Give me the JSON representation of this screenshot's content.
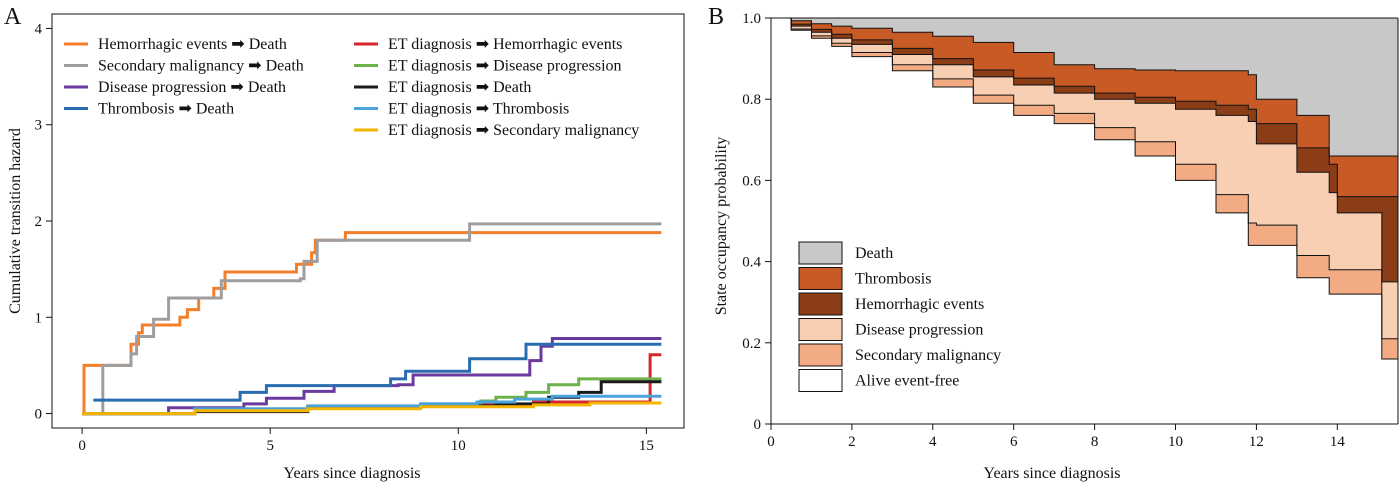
{
  "chart_data": [
    {
      "type": "line",
      "panel_label": "A",
      "xlabel": "Years since diagnosis",
      "ylabel": "Cumulative transition hazard",
      "xlim": [
        -0.8,
        16
      ],
      "ylim": [
        -0.15,
        4.15
      ],
      "xticks": [
        0,
        5,
        10,
        15
      ],
      "yticks": [
        0,
        1,
        2,
        3,
        4
      ],
      "grid": false,
      "legend_position": "top",
      "arrow_glyph": "➡",
      "series": [
        {
          "from": "Hemorrhagic events",
          "to": "Death",
          "color": "#f47f2a",
          "steps": [
            [
              0,
              0
            ],
            [
              0.05,
              0.5
            ],
            [
              0.55,
              0.5
            ],
            [
              1.3,
              0.72
            ],
            [
              1.5,
              0.84
            ],
            [
              1.6,
              0.92
            ],
            [
              2.3,
              0.92
            ],
            [
              2.6,
              1.0
            ],
            [
              2.8,
              1.08
            ],
            [
              3.1,
              1.2
            ],
            [
              3.5,
              1.3
            ],
            [
              3.8,
              1.47
            ],
            [
              5.5,
              1.47
            ],
            [
              5.7,
              1.55
            ],
            [
              6.1,
              1.67
            ],
            [
              6.2,
              1.8
            ],
            [
              7.0,
              1.88
            ],
            [
              15.4,
              1.88
            ]
          ]
        },
        {
          "from": "Secondary malignancy",
          "to": "Death",
          "color": "#9e9e9e",
          "steps": [
            [
              0.2,
              0
            ],
            [
              0.55,
              0.5
            ],
            [
              1.1,
              0.5
            ],
            [
              1.3,
              0.62
            ],
            [
              1.45,
              0.8
            ],
            [
              1.9,
              0.98
            ],
            [
              2.3,
              1.2
            ],
            [
              3.4,
              1.2
            ],
            [
              3.7,
              1.38
            ],
            [
              5.8,
              1.4
            ],
            [
              5.9,
              1.58
            ],
            [
              6.25,
              1.8
            ],
            [
              10.3,
              1.8
            ],
            [
              10.3,
              1.97
            ],
            [
              15.4,
              1.97
            ]
          ]
        },
        {
          "from": "Disease progression",
          "to": "Death",
          "color": "#6b3aa0",
          "steps": [
            [
              0,
              0
            ],
            [
              2.3,
              0.06
            ],
            [
              4.3,
              0.1
            ],
            [
              4.9,
              0.16
            ],
            [
              5.9,
              0.23
            ],
            [
              6.7,
              0.29
            ],
            [
              8.4,
              0.3
            ],
            [
              8.8,
              0.4
            ],
            [
              11.7,
              0.4
            ],
            [
              11.9,
              0.55
            ],
            [
              12.2,
              0.7
            ],
            [
              12.5,
              0.78
            ],
            [
              15.4,
              0.78
            ]
          ]
        },
        {
          "from": "Thrombosis",
          "to": "Death",
          "color": "#2a6cb0",
          "steps": [
            [
              0.3,
              0.14
            ],
            [
              4.0,
              0.14
            ],
            [
              4.2,
              0.22
            ],
            [
              4.9,
              0.29
            ],
            [
              7.8,
              0.29
            ],
            [
              8.2,
              0.36
            ],
            [
              8.6,
              0.44
            ],
            [
              10.2,
              0.44
            ],
            [
              10.3,
              0.57
            ],
            [
              11.6,
              0.57
            ],
            [
              11.8,
              0.72
            ],
            [
              15.4,
              0.72
            ]
          ]
        },
        {
          "from": "ET diagnosis",
          "to": "Hemorrhagic events",
          "color": "#d7262b",
          "steps": [
            [
              0,
              0
            ],
            [
              3.0,
              0.04
            ],
            [
              6.0,
              0.07
            ],
            [
              9.0,
              0.09
            ],
            [
              12.0,
              0.12
            ],
            [
              15.1,
              0.12
            ],
            [
              15.1,
              0.61
            ],
            [
              15.4,
              0.61
            ]
          ]
        },
        {
          "from": "ET diagnosis",
          "to": "Disease progression",
          "color": "#6db24a",
          "steps": [
            [
              0,
              0
            ],
            [
              3.0,
              0.04
            ],
            [
              6.0,
              0.07
            ],
            [
              9.0,
              0.1
            ],
            [
              10.6,
              0.13
            ],
            [
              11.0,
              0.17
            ],
            [
              11.8,
              0.22
            ],
            [
              12.4,
              0.3
            ],
            [
              13.2,
              0.36
            ],
            [
              15.4,
              0.36
            ]
          ]
        },
        {
          "from": "ET diagnosis",
          "to": "Death",
          "color": "#1a1a1a",
          "steps": [
            [
              0,
              0
            ],
            [
              3.0,
              0.02
            ],
            [
              6.0,
              0.06
            ],
            [
              9.0,
              0.08
            ],
            [
              11.0,
              0.1
            ],
            [
              12.4,
              0.17
            ],
            [
              13.2,
              0.22
            ],
            [
              13.8,
              0.33
            ],
            [
              15.4,
              0.33
            ]
          ]
        },
        {
          "from": "ET diagnosis",
          "to": "Thrombosis",
          "color": "#4aa3db",
          "steps": [
            [
              0,
              0
            ],
            [
              3.0,
              0.05
            ],
            [
              6.0,
              0.08
            ],
            [
              9.0,
              0.1
            ],
            [
              10.5,
              0.12
            ],
            [
              11.5,
              0.15
            ],
            [
              12.5,
              0.18
            ],
            [
              15.4,
              0.18
            ]
          ]
        },
        {
          "from": "ET diagnosis",
          "to": "Secondary malignancy",
          "color": "#f5b400",
          "steps": [
            [
              0,
              0
            ],
            [
              3.0,
              0.03
            ],
            [
              6.0,
              0.05
            ],
            [
              9.0,
              0.07
            ],
            [
              12.0,
              0.09
            ],
            [
              13.5,
              0.11
            ],
            [
              15.4,
              0.11
            ]
          ]
        }
      ]
    },
    {
      "type": "area",
      "panel_label": "B",
      "xlabel": "Years since diagnosis",
      "ylabel": "State occupancy probability",
      "xlim": [
        0,
        15.5
      ],
      "ylim": [
        0,
        1.0
      ],
      "xticks": [
        0,
        2,
        4,
        6,
        8,
        10,
        12,
        14
      ],
      "yticks": [
        0,
        0.2,
        0.4,
        0.6,
        0.8,
        1.0
      ],
      "ytick_labels": [
        "0",
        "0.2",
        "0.4",
        "0.6",
        "0.8",
        "1.0"
      ],
      "grid": false,
      "legend_position": "bottom-left",
      "x": [
        0,
        0.5,
        1,
        1.5,
        2,
        3,
        4,
        5,
        6,
        7,
        8,
        9,
        10,
        11,
        11.8,
        12,
        13,
        13.8,
        14,
        15.1,
        15.5
      ],
      "layers": [
        {
          "name": "Alive event-free",
          "color": "#ffffff",
          "upper": [
            1.0,
            0.97,
            0.95,
            0.93,
            0.905,
            0.87,
            0.83,
            0.79,
            0.76,
            0.74,
            0.7,
            0.66,
            0.6,
            0.52,
            0.44,
            0.44,
            0.36,
            0.32,
            0.32,
            0.16,
            0.16
          ]
        },
        {
          "name": "Secondary malignancy",
          "color": "#f2ab82",
          "upper": [
            1.0,
            0.973,
            0.956,
            0.938,
            0.915,
            0.885,
            0.85,
            0.81,
            0.785,
            0.765,
            0.73,
            0.695,
            0.64,
            0.565,
            0.495,
            0.49,
            0.415,
            0.38,
            0.38,
            0.21,
            0.21
          ]
        },
        {
          "name": "Disease progression",
          "color": "#f8cfb3",
          "upper": [
            1.0,
            0.98,
            0.965,
            0.95,
            0.935,
            0.91,
            0.885,
            0.855,
            0.835,
            0.815,
            0.8,
            0.79,
            0.775,
            0.76,
            0.745,
            0.69,
            0.62,
            0.57,
            0.52,
            0.35,
            0.35
          ]
        },
        {
          "name": "Hemorrhagic events",
          "color": "#8a3d17",
          "upper": [
            1.0,
            0.985,
            0.972,
            0.96,
            0.946,
            0.925,
            0.9,
            0.872,
            0.852,
            0.832,
            0.815,
            0.805,
            0.795,
            0.785,
            0.775,
            0.74,
            0.68,
            0.64,
            0.56,
            0.56,
            0.56
          ]
        },
        {
          "name": "Thrombosis",
          "color": "#c85a25",
          "upper": [
            1.0,
            0.993,
            0.986,
            0.98,
            0.975,
            0.965,
            0.955,
            0.94,
            0.915,
            0.885,
            0.875,
            0.872,
            0.87,
            0.87,
            0.86,
            0.8,
            0.76,
            0.66,
            0.66,
            0.66,
            0.66
          ]
        },
        {
          "name": "Death",
          "color": "#c8c8c8",
          "upper": [
            1.0,
            1.0,
            1.0,
            1.0,
            1.0,
            1.0,
            1.0,
            1.0,
            1.0,
            1.0,
            1.0,
            1.0,
            1.0,
            1.0,
            1.0,
            1.0,
            1.0,
            1.0,
            1.0,
            1.0,
            1.0
          ]
        }
      ],
      "legend_order": [
        "Death",
        "Thrombosis",
        "Hemorrhagic events",
        "Disease progression",
        "Secondary malignancy",
        "Alive event-free"
      ]
    }
  ]
}
